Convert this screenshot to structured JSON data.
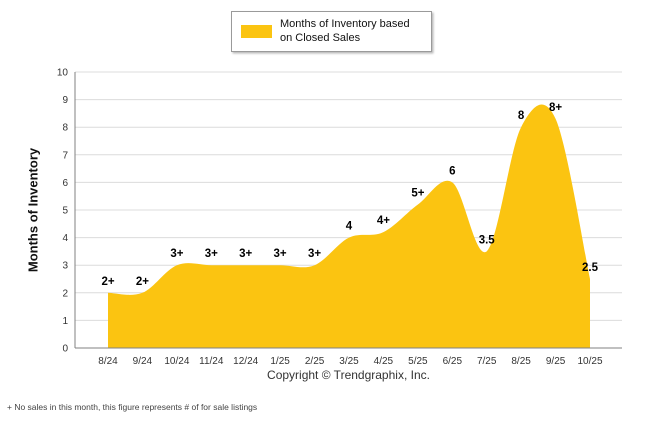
{
  "legend": {
    "label": "Months of Inventory based on Closed Sales",
    "swatch_color": "#fbc411"
  },
  "chart_data": {
    "type": "area",
    "title": "Months of Inventory based on Closed Sales",
    "categories": [
      "8/24",
      "9/24",
      "10/24",
      "11/24",
      "12/24",
      "1/25",
      "2/25",
      "3/25",
      "4/25",
      "5/25",
      "6/25",
      "7/25",
      "8/25",
      "9/25",
      "10/25"
    ],
    "values": [
      2,
      2,
      3,
      3,
      3,
      3,
      3,
      4,
      4.2,
      5.2,
      6,
      3.5,
      8,
      8.3,
      2.5
    ],
    "point_labels": [
      "2+",
      "2+",
      "3+",
      "3+",
      "3+",
      "3+",
      "3+",
      "4",
      "4+",
      "5+",
      "6",
      "3.5",
      "8",
      "8+",
      "2.5"
    ],
    "xlabel": "",
    "ylabel": "Months of Inventory",
    "ylim": [
      0,
      10
    ],
    "yticks": [
      0,
      1,
      2,
      3,
      4,
      5,
      6,
      7,
      8,
      9,
      10
    ],
    "grid": true,
    "fill_color": "#fbc411",
    "legend_position": "top-center"
  },
  "footer": {
    "copyright": "Copyright © Trendgraphix, Inc.",
    "footnote": "+ No sales in this month, this figure represents # of for sale listings"
  }
}
